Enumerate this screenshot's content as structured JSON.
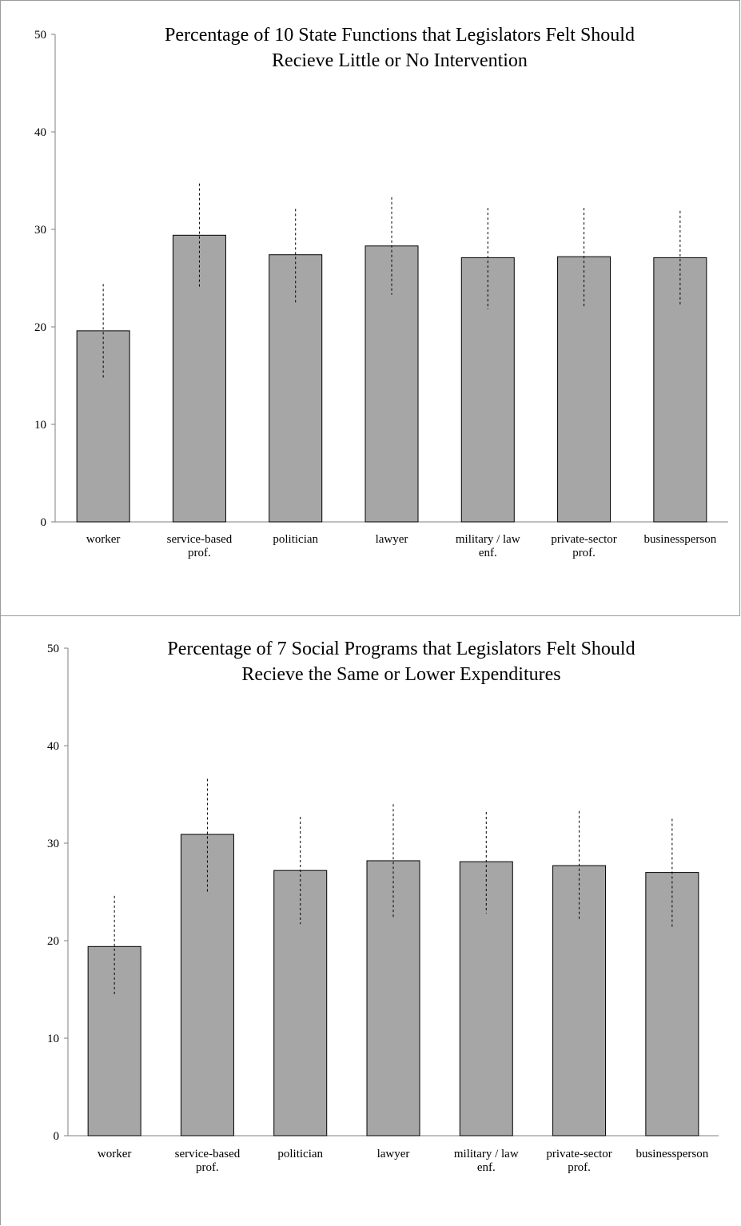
{
  "chart_data": [
    {
      "type": "bar",
      "title": "Percentage of 10 State Functions that Legislators Felt Should Recieve Little or No Intervention",
      "title_lines": [
        "Percentage of 10 State Functions that Legislators Felt Should",
        "Recieve Little or No Intervention"
      ],
      "categories": [
        "worker",
        "service-based prof.",
        "politician",
        "lawyer",
        "military / law enf.",
        "private-sector prof.",
        "businessperson"
      ],
      "category_lines": [
        [
          "worker"
        ],
        [
          "service-based",
          "prof."
        ],
        [
          "politician"
        ],
        [
          "lawyer"
        ],
        [
          "military / law",
          "enf."
        ],
        [
          "private-sector",
          "prof."
        ],
        [
          "businessperson"
        ]
      ],
      "values": [
        19.6,
        29.4,
        27.4,
        28.3,
        27.1,
        27.2,
        27.1
      ],
      "error_low": [
        14.7,
        24.0,
        22.4,
        23.3,
        21.8,
        22.1,
        22.2
      ],
      "error_high": [
        24.4,
        34.7,
        32.1,
        33.3,
        32.2,
        32.2,
        31.9
      ],
      "ylim": [
        0,
        50
      ],
      "yticks": [
        0,
        10,
        20,
        30,
        40,
        50
      ],
      "grid": false,
      "bar_color": "#a6a6a6",
      "xlabel": "",
      "ylabel": ""
    },
    {
      "type": "bar",
      "title": "Percentage of 7 Social Programs that Legislators Felt Should Recieve the Same or Lower Expenditures",
      "title_lines": [
        "Percentage of 7 Social Programs that Legislators Felt Should",
        "Recieve the Same or Lower Expenditures"
      ],
      "categories": [
        "worker",
        "service-based prof.",
        "politician",
        "lawyer",
        "military / law enf.",
        "private-sector prof.",
        "businessperson"
      ],
      "category_lines": [
        [
          "worker"
        ],
        [
          "service-based",
          "prof."
        ],
        [
          "politician"
        ],
        [
          "lawyer"
        ],
        [
          "military / law",
          "enf."
        ],
        [
          "private-sector",
          "prof."
        ],
        [
          "businessperson"
        ]
      ],
      "values": [
        19.4,
        30.9,
        27.2,
        28.2,
        28.1,
        27.7,
        27.0
      ],
      "error_low": [
        14.3,
        25.0,
        21.7,
        22.4,
        22.8,
        22.0,
        21.4
      ],
      "error_high": [
        24.6,
        36.6,
        32.7,
        34.0,
        33.2,
        33.3,
        32.5
      ],
      "ylim": [
        0,
        50
      ],
      "yticks": [
        0,
        10,
        20,
        30,
        40,
        50
      ],
      "grid": false,
      "bar_color": "#a6a6a6",
      "xlabel": "",
      "ylabel": ""
    }
  ]
}
